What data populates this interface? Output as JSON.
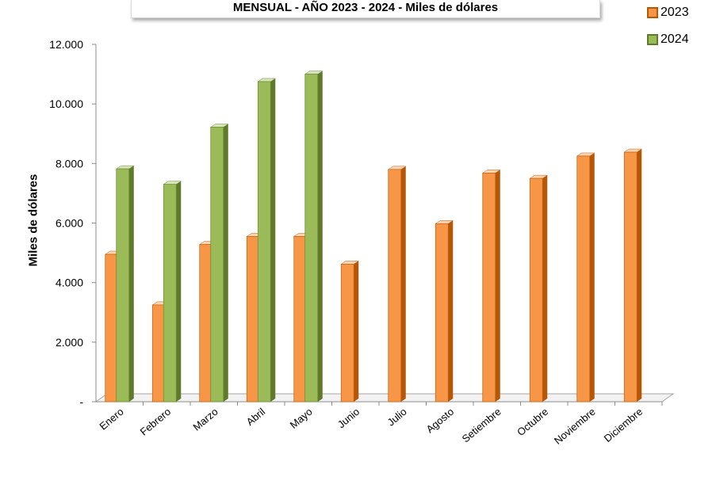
{
  "chart_data": {
    "type": "bar",
    "title": "MENSUAL - AÑO 2023 - 2024 - Miles de dólares",
    "ylabel": "Miles de dólares",
    "xlabel": "",
    "ylim": [
      0,
      12000
    ],
    "yticks": [
      {
        "value": 0,
        "label": "-"
      },
      {
        "value": 2000,
        "label": "2.000"
      },
      {
        "value": 4000,
        "label": "4.000"
      },
      {
        "value": 6000,
        "label": "6.000"
      },
      {
        "value": 8000,
        "label": "8.000"
      },
      {
        "value": 10000,
        "label": "10.000"
      },
      {
        "value": 12000,
        "label": "12.000"
      }
    ],
    "categories": [
      "Enero",
      "Febrero",
      "Marzo",
      "Abril",
      "Mayo",
      "Junio",
      "Julio",
      "Agosto",
      "Setiembre",
      "Octubre",
      "Noviembre",
      "Diciembre"
    ],
    "series": [
      {
        "name": "2023",
        "color": "#F79646",
        "values": [
          4950,
          3250,
          5280,
          5550,
          5550,
          4620,
          7800,
          5980,
          7680,
          7500,
          8250,
          8380
        ]
      },
      {
        "name": "2024",
        "color": "#9BBB59",
        "values": [
          7820,
          7300,
          9220,
          10750,
          11000,
          null,
          null,
          null,
          null,
          null,
          null,
          null
        ]
      }
    ],
    "legend_position": "top-right",
    "grid": false
  }
}
